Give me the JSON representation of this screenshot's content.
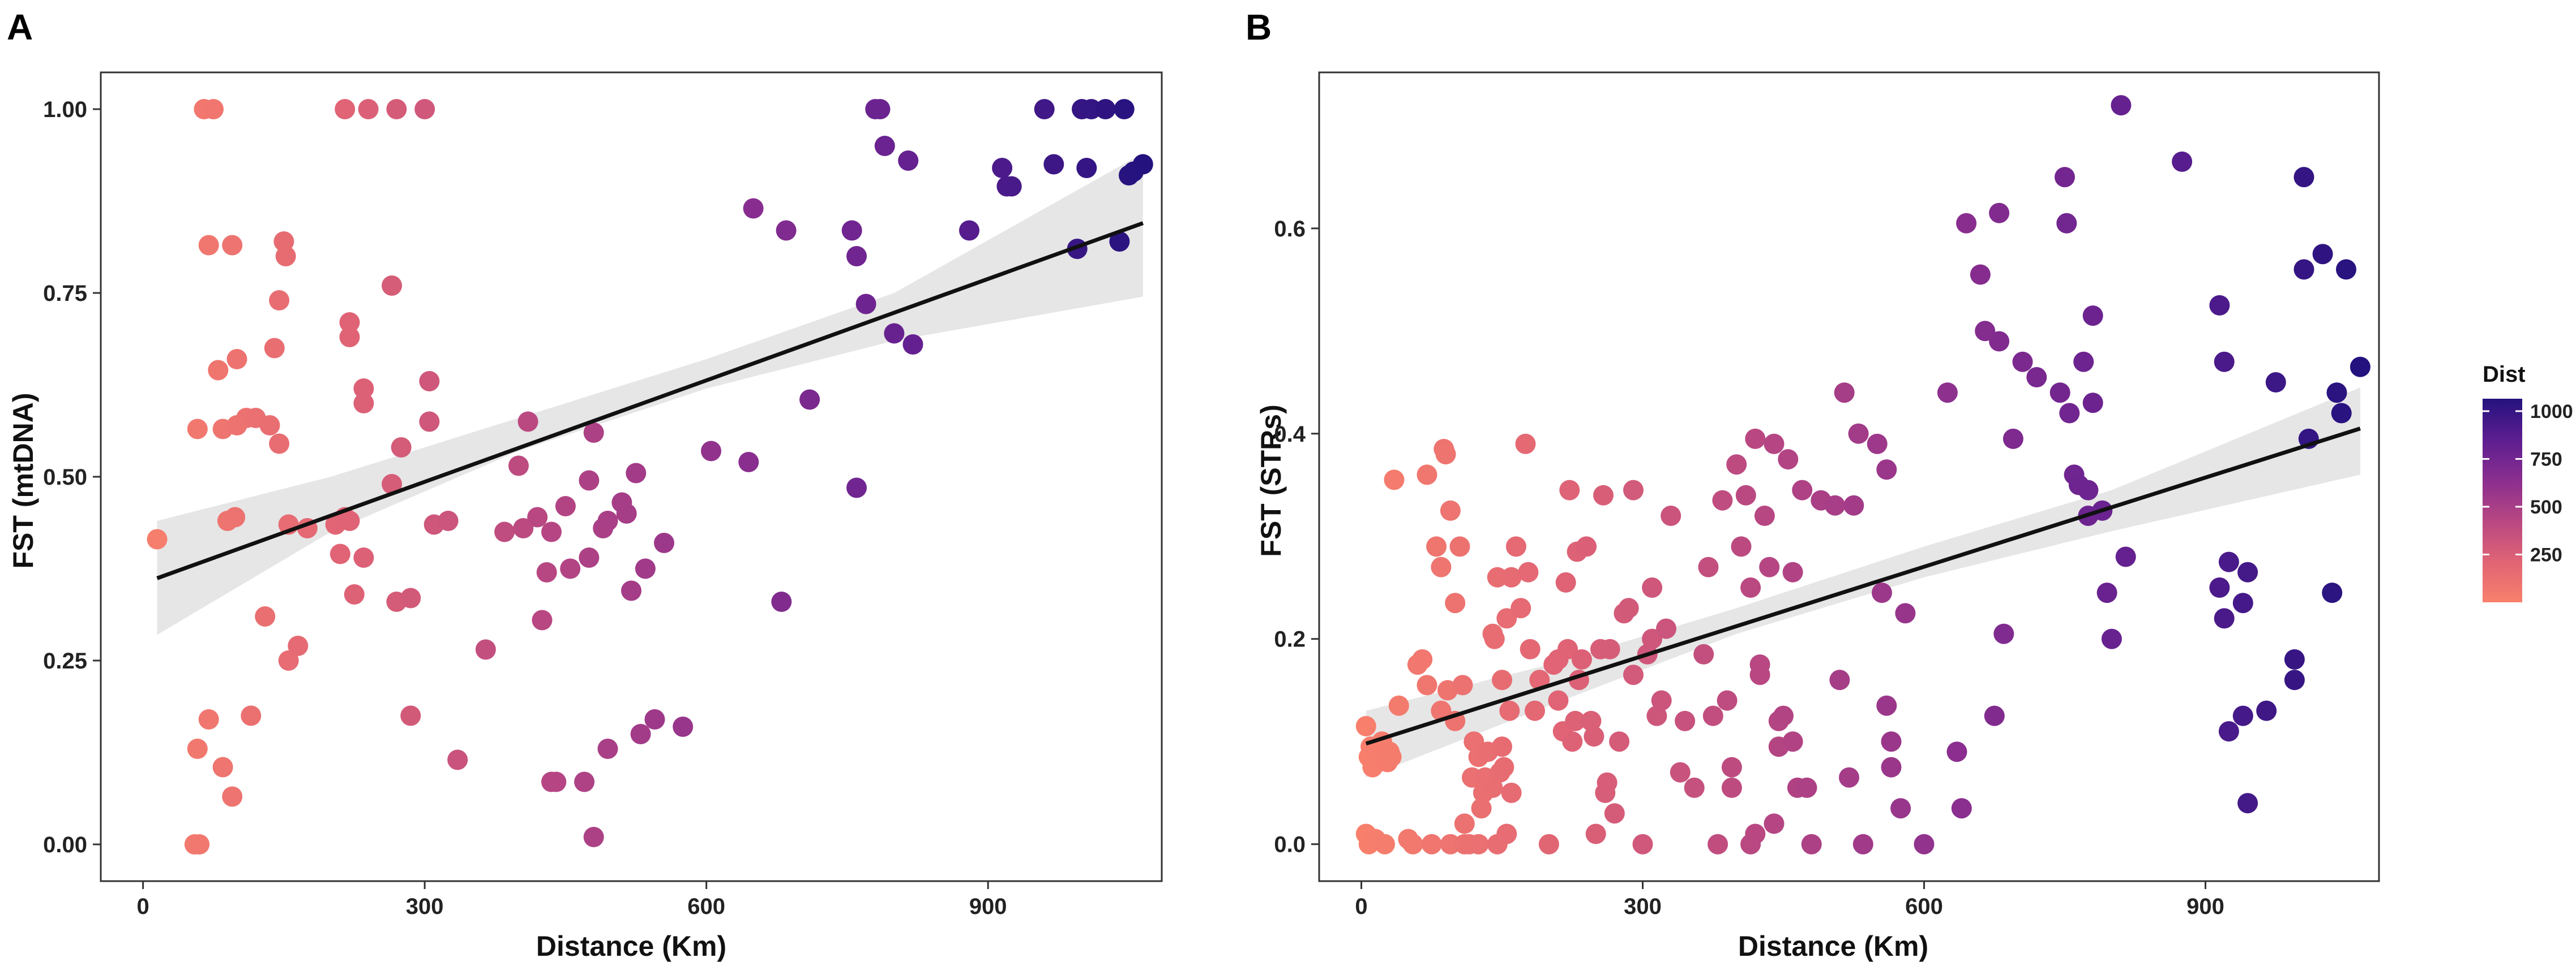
{
  "chart_data": [
    {
      "panel_label": "A",
      "type": "scatter",
      "xlabel": "Distance (Km)",
      "ylabel": "FST (mtDNA)",
      "xlim": [
        -45,
        1085
      ],
      "ylim": [
        -0.05,
        1.05
      ],
      "xticks": [
        0,
        300,
        600,
        900
      ],
      "xtick_labels": [
        "0",
        "300",
        "600",
        "900"
      ],
      "yticks": [
        0,
        0.25,
        0.5,
        0.75,
        1.0
      ],
      "ytick_labels": [
        "0.00",
        "0.25",
        "0.50",
        "0.75",
        "1.00"
      ],
      "fit_line": {
        "x": [
          15,
          1065
        ],
        "y": [
          0.362,
          0.845
        ]
      },
      "confidence_band": {
        "x": [
          15,
          200,
          400,
          600,
          800,
          1065
        ],
        "lower": [
          0.285,
          0.425,
          0.535,
          0.62,
          0.685,
          0.745
        ],
        "upper": [
          0.44,
          0.5,
          0.58,
          0.66,
          0.75,
          0.94
        ]
      },
      "points": [
        [
          65,
          1.0
        ],
        [
          75,
          1.0
        ],
        [
          215,
          1.0
        ],
        [
          240,
          1.0
        ],
        [
          270,
          1.0
        ],
        [
          300,
          1.0
        ],
        [
          780,
          1.0
        ],
        [
          785,
          1.0
        ],
        [
          960,
          1.0
        ],
        [
          1000,
          1.0
        ],
        [
          1010,
          1.0
        ],
        [
          1025,
          1.0
        ],
        [
          1045,
          1.0
        ],
        [
          15,
          0.415
        ],
        [
          55,
          0.0
        ],
        [
          60,
          0.0
        ],
        [
          58,
          0.13
        ],
        [
          70,
          0.815
        ],
        [
          95,
          0.815
        ],
        [
          80,
          0.645
        ],
        [
          100,
          0.66
        ],
        [
          58,
          0.565
        ],
        [
          85,
          0.565
        ],
        [
          100,
          0.57
        ],
        [
          110,
          0.58
        ],
        [
          120,
          0.58
        ],
        [
          135,
          0.57
        ],
        [
          145,
          0.545
        ],
        [
          155,
          0.435
        ],
        [
          150,
          0.82
        ],
        [
          152,
          0.8
        ],
        [
          145,
          0.74
        ],
        [
          140,
          0.675
        ],
        [
          90,
          0.44
        ],
        [
          98,
          0.445
        ],
        [
          70,
          0.17
        ],
        [
          85,
          0.105
        ],
        [
          95,
          0.065
        ],
        [
          115,
          0.175
        ],
        [
          130,
          0.31
        ],
        [
          155,
          0.25
        ],
        [
          165,
          0.27
        ],
        [
          175,
          0.43
        ],
        [
          205,
          0.435
        ],
        [
          215,
          0.445
        ],
        [
          220,
          0.44
        ],
        [
          210,
          0.395
        ],
        [
          225,
          0.34
        ],
        [
          235,
          0.39
        ],
        [
          220,
          0.71
        ],
        [
          220,
          0.69
        ],
        [
          235,
          0.62
        ],
        [
          235,
          0.6
        ],
        [
          265,
          0.76
        ],
        [
          265,
          0.49
        ],
        [
          275,
          0.54
        ],
        [
          270,
          0.33
        ],
        [
          285,
          0.335
        ],
        [
          285,
          0.175
        ],
        [
          305,
          0.63
        ],
        [
          305,
          0.575
        ],
        [
          310,
          0.435
        ],
        [
          325,
          0.44
        ],
        [
          335,
          0.115
        ],
        [
          365,
          0.265
        ],
        [
          385,
          0.425
        ],
        [
          405,
          0.43
        ],
        [
          400,
          0.515
        ],
        [
          410,
          0.575
        ],
        [
          420,
          0.445
        ],
        [
          425,
          0.305
        ],
        [
          430,
          0.37
        ],
        [
          435,
          0.425
        ],
        [
          435,
          0.085
        ],
        [
          440,
          0.085
        ],
        [
          450,
          0.46
        ],
        [
          455,
          0.375
        ],
        [
          470,
          0.085
        ],
        [
          475,
          0.495
        ],
        [
          475,
          0.39
        ],
        [
          480,
          0.56
        ],
        [
          480,
          0.01
        ],
        [
          490,
          0.43
        ],
        [
          495,
          0.44
        ],
        [
          495,
          0.13
        ],
        [
          510,
          0.465
        ],
        [
          515,
          0.45
        ],
        [
          520,
          0.345
        ],
        [
          525,
          0.505
        ],
        [
          530,
          0.15
        ],
        [
          535,
          0.375
        ],
        [
          545,
          0.17
        ],
        [
          555,
          0.41
        ],
        [
          575,
          0.16
        ],
        [
          605,
          0.535
        ],
        [
          645,
          0.52
        ],
        [
          650,
          0.865
        ],
        [
          680,
          0.33
        ],
        [
          685,
          0.835
        ],
        [
          710,
          0.605
        ],
        [
          755,
          0.835
        ],
        [
          760,
          0.8
        ],
        [
          760,
          0.485
        ],
        [
          770,
          0.735
        ],
        [
          790,
          0.95
        ],
        [
          800,
          0.695
        ],
        [
          815,
          0.93
        ],
        [
          820,
          0.68
        ],
        [
          880,
          0.835
        ],
        [
          915,
          0.92
        ],
        [
          920,
          0.895
        ],
        [
          925,
          0.895
        ],
        [
          970,
          0.925
        ],
        [
          995,
          0.81
        ],
        [
          1005,
          0.92
        ],
        [
          1040,
          0.82
        ],
        [
          1050,
          0.91
        ],
        [
          1055,
          0.915
        ],
        [
          1065,
          0.925
        ]
      ]
    },
    {
      "panel_label": "B",
      "type": "scatter",
      "xlabel": "Distance (Km)",
      "ylabel": "FST (STRs)",
      "xlim": [
        -45,
        1085
      ],
      "ylim": [
        -0.036,
        0.752
      ],
      "xticks": [
        0,
        300,
        600,
        900
      ],
      "xtick_labels": [
        "0",
        "300",
        "600",
        "900"
      ],
      "yticks": [
        0,
        0.2,
        0.4,
        0.6
      ],
      "ytick_labels": [
        "0.0",
        "0.2",
        "0.4",
        "0.6"
      ],
      "fit_line": {
        "x": [
          5,
          1065
        ],
        "y": [
          0.098,
          0.405
        ]
      },
      "confidence_band": {
        "x": [
          5,
          200,
          400,
          600,
          800,
          1065
        ],
        "lower": [
          0.065,
          0.135,
          0.205,
          0.26,
          0.305,
          0.36
        ],
        "upper": [
          0.13,
          0.175,
          0.23,
          0.29,
          0.345,
          0.445
        ]
      },
      "points": [
        [
          5,
          0.115
        ],
        [
          8,
          0.085
        ],
        [
          10,
          0.095
        ],
        [
          12,
          0.075
        ],
        [
          15,
          0.09
        ],
        [
          18,
          0.08
        ],
        [
          20,
          0.095
        ],
        [
          22,
          0.1
        ],
        [
          25,
          0.085
        ],
        [
          28,
          0.08
        ],
        [
          30,
          0.09
        ],
        [
          32,
          0.085
        ],
        [
          5,
          0.01
        ],
        [
          8,
          0.0
        ],
        [
          15,
          0.005
        ],
        [
          25,
          0.0
        ],
        [
          35,
          0.355
        ],
        [
          40,
          0.135
        ],
        [
          50,
          0.005
        ],
        [
          55,
          0.0
        ],
        [
          60,
          0.175
        ],
        [
          65,
          0.18
        ],
        [
          70,
          0.36
        ],
        [
          70,
          0.155
        ],
        [
          75,
          0.0
        ],
        [
          80,
          0.29
        ],
        [
          85,
          0.27
        ],
        [
          85,
          0.13
        ],
        [
          88,
          0.385
        ],
        [
          90,
          0.38
        ],
        [
          92,
          0.15
        ],
        [
          95,
          0.325
        ],
        [
          95,
          0.0
        ],
        [
          100,
          0.12
        ],
        [
          100,
          0.235
        ],
        [
          105,
          0.29
        ],
        [
          108,
          0.155
        ],
        [
          110,
          0.02
        ],
        [
          110,
          0.0
        ],
        [
          115,
          0.0
        ],
        [
          118,
          0.065
        ],
        [
          120,
          0.1
        ],
        [
          125,
          0.085
        ],
        [
          125,
          0.0
        ],
        [
          128,
          0.035
        ],
        [
          130,
          0.05
        ],
        [
          132,
          0.065
        ],
        [
          135,
          0.09
        ],
        [
          140,
          0.055
        ],
        [
          140,
          0.205
        ],
        [
          142,
          0.2
        ],
        [
          145,
          0.26
        ],
        [
          145,
          0.0
        ],
        [
          148,
          0.07
        ],
        [
          150,
          0.16
        ],
        [
          150,
          0.095
        ],
        [
          152,
          0.075
        ],
        [
          155,
          0.22
        ],
        [
          155,
          0.01
        ],
        [
          158,
          0.13
        ],
        [
          160,
          0.26
        ],
        [
          160,
          0.05
        ],
        [
          165,
          0.29
        ],
        [
          170,
          0.23
        ],
        [
          175,
          0.39
        ],
        [
          178,
          0.265
        ],
        [
          180,
          0.19
        ],
        [
          185,
          0.13
        ],
        [
          190,
          0.16
        ],
        [
          200,
          0.0
        ],
        [
          205,
          0.175
        ],
        [
          210,
          0.18
        ],
        [
          210,
          0.14
        ],
        [
          215,
          0.11
        ],
        [
          218,
          0.255
        ],
        [
          220,
          0.19
        ],
        [
          222,
          0.345
        ],
        [
          225,
          0.1
        ],
        [
          228,
          0.12
        ],
        [
          230,
          0.285
        ],
        [
          232,
          0.16
        ],
        [
          235,
          0.18
        ],
        [
          240,
          0.29
        ],
        [
          245,
          0.12
        ],
        [
          248,
          0.105
        ],
        [
          250,
          0.01
        ],
        [
          255,
          0.19
        ],
        [
          258,
          0.34
        ],
        [
          260,
          0.05
        ],
        [
          262,
          0.06
        ],
        [
          265,
          0.19
        ],
        [
          270,
          0.03
        ],
        [
          275,
          0.1
        ],
        [
          280,
          0.225
        ],
        [
          285,
          0.23
        ],
        [
          290,
          0.165
        ],
        [
          290,
          0.345
        ],
        [
          300,
          0.0
        ],
        [
          305,
          0.185
        ],
        [
          310,
          0.2
        ],
        [
          310,
          0.25
        ],
        [
          315,
          0.125
        ],
        [
          320,
          0.14
        ],
        [
          325,
          0.21
        ],
        [
          330,
          0.32
        ],
        [
          340,
          0.07
        ],
        [
          345,
          0.12
        ],
        [
          355,
          0.055
        ],
        [
          365,
          0.185
        ],
        [
          370,
          0.27
        ],
        [
          375,
          0.125
        ],
        [
          380,
          0.0
        ],
        [
          385,
          0.335
        ],
        [
          390,
          0.14
        ],
        [
          395,
          0.075
        ],
        [
          395,
          0.055
        ],
        [
          400,
          0.37
        ],
        [
          405,
          0.29
        ],
        [
          410,
          0.34
        ],
        [
          415,
          0.25
        ],
        [
          415,
          0.0
        ],
        [
          420,
          0.395
        ],
        [
          420,
          0.01
        ],
        [
          425,
          0.175
        ],
        [
          425,
          0.165
        ],
        [
          430,
          0.32
        ],
        [
          435,
          0.27
        ],
        [
          440,
          0.39
        ],
        [
          440,
          0.02
        ],
        [
          445,
          0.12
        ],
        [
          445,
          0.095
        ],
        [
          450,
          0.125
        ],
        [
          455,
          0.375
        ],
        [
          460,
          0.265
        ],
        [
          460,
          0.1
        ],
        [
          465,
          0.055
        ],
        [
          470,
          0.345
        ],
        [
          475,
          0.055
        ],
        [
          480,
          0.0
        ],
        [
          490,
          0.335
        ],
        [
          505,
          0.33
        ],
        [
          510,
          0.16
        ],
        [
          515,
          0.44
        ],
        [
          520,
          0.065
        ],
        [
          525,
          0.33
        ],
        [
          530,
          0.4
        ],
        [
          535,
          0.0
        ],
        [
          550,
          0.39
        ],
        [
          555,
          0.245
        ],
        [
          560,
          0.365
        ],
        [
          560,
          0.135
        ],
        [
          565,
          0.1
        ],
        [
          565,
          0.075
        ],
        [
          575,
          0.035
        ],
        [
          580,
          0.225
        ],
        [
          600,
          0.0
        ],
        [
          625,
          0.44
        ],
        [
          635,
          0.09
        ],
        [
          640,
          0.035
        ],
        [
          645,
          0.605
        ],
        [
          660,
          0.555
        ],
        [
          665,
          0.5
        ],
        [
          675,
          0.125
        ],
        [
          680,
          0.615
        ],
        [
          680,
          0.49
        ],
        [
          685,
          0.205
        ],
        [
          695,
          0.395
        ],
        [
          705,
          0.47
        ],
        [
          720,
          0.455
        ],
        [
          745,
          0.44
        ],
        [
          750,
          0.65
        ],
        [
          752,
          0.605
        ],
        [
          755,
          0.42
        ],
        [
          760,
          0.36
        ],
        [
          765,
          0.35
        ],
        [
          770,
          0.47
        ],
        [
          775,
          0.345
        ],
        [
          775,
          0.32
        ],
        [
          780,
          0.43
        ],
        [
          780,
          0.515
        ],
        [
          790,
          0.325
        ],
        [
          795,
          0.245
        ],
        [
          800,
          0.2
        ],
        [
          810,
          0.72
        ],
        [
          815,
          0.28
        ],
        [
          875,
          0.665
        ],
        [
          915,
          0.525
        ],
        [
          915,
          0.25
        ],
        [
          920,
          0.47
        ],
        [
          920,
          0.22
        ],
        [
          925,
          0.275
        ],
        [
          925,
          0.11
        ],
        [
          940,
          0.235
        ],
        [
          940,
          0.125
        ],
        [
          945,
          0.04
        ],
        [
          945,
          0.265
        ],
        [
          965,
          0.13
        ],
        [
          975,
          0.45
        ],
        [
          995,
          0.18
        ],
        [
          995,
          0.16
        ],
        [
          1005,
          0.65
        ],
        [
          1005,
          0.56
        ],
        [
          1010,
          0.395
        ],
        [
          1025,
          0.575
        ],
        [
          1035,
          0.245
        ],
        [
          1040,
          0.44
        ],
        [
          1045,
          0.42
        ],
        [
          1050,
          0.56
        ],
        [
          1065,
          0.465
        ]
      ]
    }
  ],
  "legend": {
    "title": "Dist",
    "ticks": [
      250,
      500,
      750,
      1000
    ],
    "tick_labels": [
      "250",
      "500",
      "750",
      "1000"
    ],
    "range": [
      0,
      1065
    ],
    "colors": [
      "#f8806c",
      "#e06475",
      "#b84782",
      "#8a2e8f",
      "#5d1e90",
      "#24127e"
    ]
  }
}
